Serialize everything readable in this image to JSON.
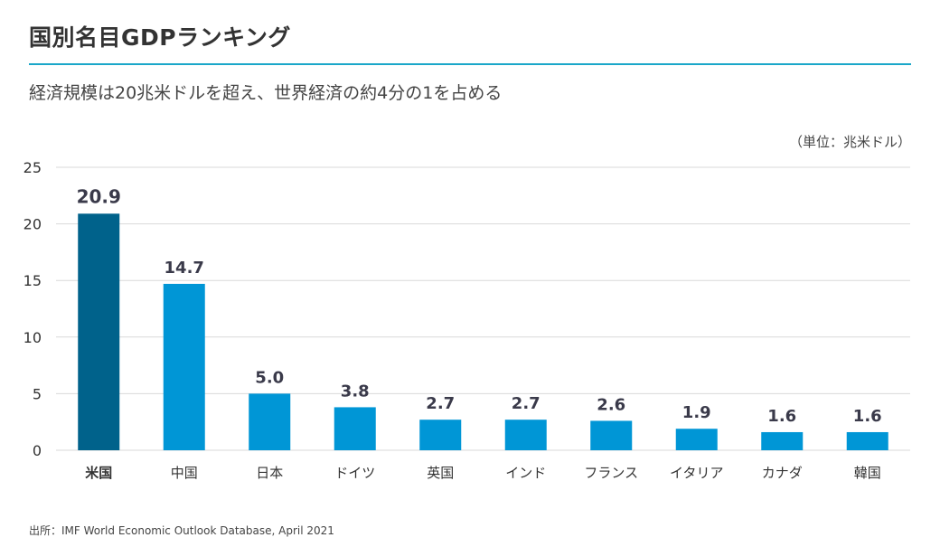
{
  "header": {
    "title": "国別名目GDPランキング",
    "subtitle": "経済規模は20兆米ドルを超え、世界経済の約4分の1を占める"
  },
  "unit_label": "（単位：兆米ドル）",
  "footnote": "出所：IMF World Economic Outlook Database, April 2021",
  "colors": {
    "highlight": "#00628b",
    "bar": "#0096d6",
    "grid": "#d9d9d9",
    "rule": "#1aa7c9"
  },
  "chart_data": {
    "type": "bar",
    "categories": [
      "米国",
      "中国",
      "日本",
      "ドイツ",
      "英国",
      "インド",
      "フランス",
      "イタリア",
      "カナダ",
      "韓国"
    ],
    "values": [
      20.9,
      14.7,
      5.0,
      3.8,
      2.7,
      2.7,
      2.6,
      1.9,
      1.6,
      1.6
    ],
    "value_labels": [
      "20.9",
      "14.7",
      "5.0",
      "3.8",
      "2.7",
      "2.7",
      "2.6",
      "1.9",
      "1.6",
      "1.6"
    ],
    "highlight_index": 0,
    "ylim": [
      0,
      25
    ],
    "yticks": [
      0,
      5,
      10,
      15,
      20,
      25
    ],
    "grid": true,
    "legend": "none"
  }
}
